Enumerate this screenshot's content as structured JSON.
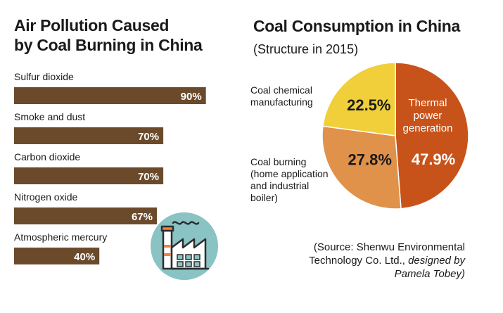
{
  "left": {
    "title_line1": "Air Pollution Caused",
    "title_line2": "by Coal Burning in China"
  },
  "right": {
    "title": "Coal Consumption in China",
    "subtitle": "(Structure in 2015)"
  },
  "source": {
    "line1": "(Source: Shenwu Environmental",
    "line2_plain": "Technology Co. Ltd., ",
    "line2_italic": "designed by",
    "line3_italic": "Pamela Tobey)"
  },
  "colors": {
    "bar": "#6b4a2b",
    "pie_thermal": "#c8531a",
    "pie_burning": "#e0914a",
    "pie_chemical": "#f0cf3a",
    "icon_circle": "#89c3c3"
  },
  "icon": "factory-icon",
  "chart_data": [
    {
      "type": "bar",
      "orientation": "horizontal",
      "title": "Air Pollution Caused by Coal Burning in China",
      "categories": [
        "Sulfur dioxide",
        "Smoke and dust",
        "Carbon dioxide",
        "Nitrogen oxide",
        "Atmospheric mercury"
      ],
      "values": [
        90,
        70,
        70,
        67,
        40
      ],
      "value_labels": [
        "90%",
        "70%",
        "70%",
        "67%",
        "40%"
      ],
      "unit": "%",
      "xlim": [
        0,
        100
      ]
    },
    {
      "type": "pie",
      "title": "Coal Consumption in China",
      "subtitle": "(Structure in 2015)",
      "slices": [
        {
          "label": "Thermal power generation",
          "value": 47.9,
          "value_label": "47.9%"
        },
        {
          "label": "Coal burning (home application and industrial boiler)",
          "value": 27.8,
          "value_label": "27.8%"
        },
        {
          "label": "Coal chemical manufacturing",
          "value": 22.5,
          "value_label": "22.5%"
        }
      ]
    }
  ]
}
